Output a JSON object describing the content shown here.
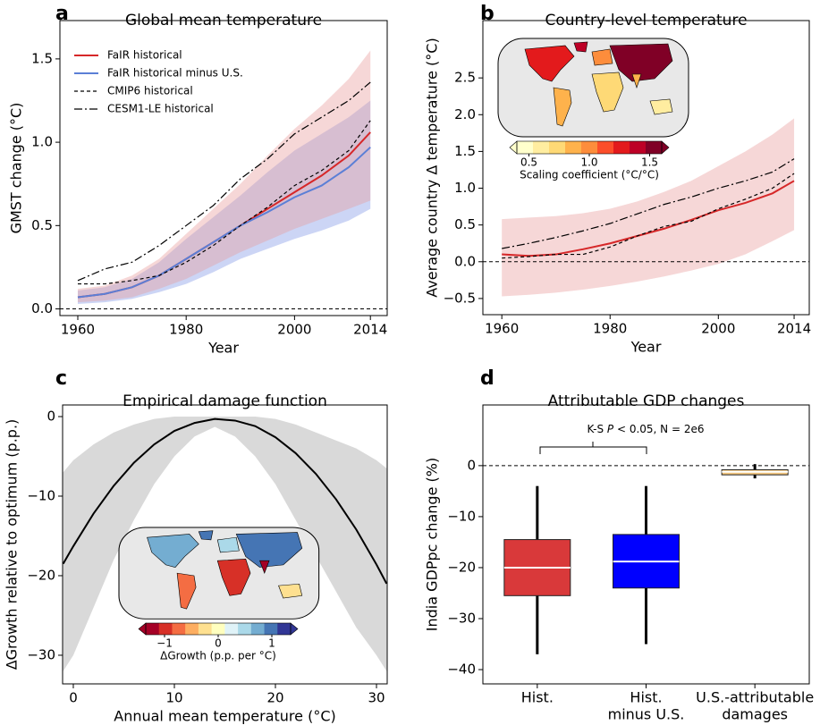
{
  "chart_data": [
    {
      "type": "line",
      "letter": "a",
      "title": "Global mean temperature",
      "xlabel": "Year",
      "ylabel": "GMST change (°C)",
      "x": [
        1960,
        1965,
        1970,
        1975,
        1980,
        1985,
        1990,
        1995,
        2000,
        2005,
        2010,
        2014
      ],
      "xlim": [
        1956.7,
        2017.1
      ],
      "xticks": [
        1960,
        1980,
        2000,
        2014
      ],
      "ylim": [
        -0.04,
        1.73
      ],
      "yticks": [
        {
          "value": 0,
          "label": "0.0"
        },
        0.5,
        {
          "value": 1,
          "label": "1.0"
        },
        1.5
      ],
      "hline": 0,
      "bands": [
        {
          "color": "#7f96e6",
          "lower": [
            0.03,
            0.04,
            0.06,
            0.1,
            0.15,
            0.22,
            0.3,
            0.36,
            0.42,
            0.47,
            0.53,
            0.6
          ],
          "upper": [
            0.11,
            0.13,
            0.18,
            0.28,
            0.42,
            0.55,
            0.68,
            0.82,
            0.95,
            1.05,
            1.15,
            1.25
          ]
        },
        {
          "color": "#e89a9a",
          "lower": [
            0.04,
            0.05,
            0.07,
            0.12,
            0.18,
            0.26,
            0.34,
            0.41,
            0.48,
            0.54,
            0.6,
            0.65
          ],
          "upper": [
            0.12,
            0.14,
            0.2,
            0.3,
            0.45,
            0.6,
            0.75,
            0.92,
            1.08,
            1.22,
            1.38,
            1.55
          ]
        }
      ],
      "series": [
        {
          "name": "FaIR historical",
          "color": "#d62728",
          "dash": "solid",
          "values": [
            0.07,
            0.09,
            0.13,
            0.2,
            0.3,
            0.4,
            0.5,
            0.6,
            0.7,
            0.8,
            0.92,
            1.06
          ]
        },
        {
          "name": "FaIR historical minus U.S.",
          "color": "#5b7fd6",
          "dash": "solid",
          "values": [
            0.07,
            0.09,
            0.13,
            0.2,
            0.3,
            0.4,
            0.5,
            0.58,
            0.67,
            0.74,
            0.85,
            0.97
          ]
        },
        {
          "name": "CMIP6 historical",
          "color": "#000000",
          "dash": "dashed",
          "values": [
            0.15,
            0.15,
            0.17,
            0.2,
            0.28,
            0.38,
            0.5,
            0.61,
            0.74,
            0.83,
            0.95,
            1.13
          ]
        },
        {
          "name": "CESM1-LE historical",
          "color": "#000000",
          "dash": "dashdot",
          "values": [
            0.17,
            0.24,
            0.28,
            0.38,
            0.5,
            0.62,
            0.78,
            0.9,
            1.05,
            1.15,
            1.25,
            1.36
          ]
        }
      ],
      "legend": "upper left"
    },
    {
      "type": "line",
      "letter": "b",
      "title": "Country-level temperature",
      "xlabel": "Year",
      "ylabel": "Average country Δ temperature (°C)",
      "x": [
        1960,
        1965,
        1970,
        1975,
        1980,
        1985,
        1990,
        1995,
        2000,
        2005,
        2010,
        2014
      ],
      "xlim": [
        1956.5,
        2016.8
      ],
      "xticks": [
        1960,
        1980,
        2000,
        2014
      ],
      "ylim": [
        -0.72,
        3.28
      ],
      "yticks": [
        {
          "value": -0.5,
          "label": "−0.5"
        },
        {
          "value": 0,
          "label": "0.0"
        },
        0.5,
        {
          "value": 1,
          "label": "1.0"
        },
        1.5,
        {
          "value": 2,
          "label": "2.0"
        },
        2.5
      ],
      "hline": 0,
      "bands": [
        {
          "color": "#e89a9a",
          "lower": [
            -0.47,
            -0.45,
            -0.42,
            -0.38,
            -0.33,
            -0.27,
            -0.2,
            -0.12,
            -0.03,
            0.1,
            0.28,
            0.43
          ],
          "upper": [
            0.58,
            0.6,
            0.62,
            0.66,
            0.72,
            0.82,
            0.95,
            1.1,
            1.3,
            1.5,
            1.73,
            1.95
          ]
        }
      ],
      "series": [
        {
          "color": "#d62728",
          "dash": "solid",
          "values": [
            0.1,
            0.08,
            0.1,
            0.17,
            0.25,
            0.35,
            0.45,
            0.57,
            0.7,
            0.8,
            0.93,
            1.1
          ]
        },
        {
          "color": "#000000",
          "dash": "dashed",
          "values": [
            0.05,
            0.07,
            0.1,
            0.1,
            0.2,
            0.35,
            0.48,
            0.55,
            0.72,
            0.85,
            1.0,
            1.2
          ]
        },
        {
          "color": "#000000",
          "dash": "dashdot",
          "values": [
            0.18,
            0.25,
            0.33,
            0.42,
            0.52,
            0.65,
            0.78,
            0.88,
            1.0,
            1.1,
            1.22,
            1.4
          ]
        }
      ],
      "colorbar": {
        "colors": [
          "#ffffcc",
          "#ffeda0",
          "#fed976",
          "#feb24c",
          "#fd8d3c",
          "#fc4e2a",
          "#e31a1c",
          "#bd0026",
          "#800026"
        ],
        "lim": [
          0.4,
          1.6
        ],
        "ticks": [
          0.5,
          {
            "value": 1,
            "label": "1.0"
          },
          1.5
        ],
        "label": "Scaling coefficient (°C/°C)"
      }
    },
    {
      "type": "line",
      "letter": "c",
      "title": "Empirical damage function",
      "xlabel": "Annual mean temperature (°C)",
      "ylabel": "ΔGrowth relative to optimum (p.p.)",
      "x": [
        -1,
        0,
        2,
        4,
        6,
        8,
        10,
        12,
        14,
        16,
        18,
        20,
        22,
        24,
        26,
        28,
        30,
        31
      ],
      "xlim": [
        -1.06,
        31.06
      ],
      "xticks": [
        0,
        10,
        20,
        30
      ],
      "ylim": [
        -33.6,
        1.46
      ],
      "yticks": [
        {
          "value": -30,
          "label": "−30"
        },
        {
          "value": -20,
          "label": "−20"
        },
        {
          "value": -10,
          "label": "−10"
        },
        0
      ],
      "bands": [
        {
          "color": "#cfcfcf",
          "lower": [
            -32,
            -30,
            -24,
            -18,
            -13,
            -8.5,
            -5,
            -2.5,
            -1.3,
            -2.5,
            -5,
            -8.5,
            -13,
            -17.5,
            -22,
            -26.5,
            -30,
            -32
          ],
          "upper": [
            -7,
            -5.5,
            -3.5,
            -2,
            -1,
            -0.3,
            0,
            0,
            0,
            0,
            0,
            -0.3,
            -1,
            -2,
            -3,
            -4,
            -5.5,
            -6.5
          ]
        }
      ],
      "series": [
        {
          "color": "#000000",
          "dash": "solid",
          "values": [
            -18.5,
            -16.3,
            -12.2,
            -8.7,
            -5.8,
            -3.5,
            -1.8,
            -0.8,
            -0.3,
            -0.5,
            -1.2,
            -2.6,
            -4.6,
            -7.2,
            -10.4,
            -14.2,
            -18.6,
            -21
          ]
        }
      ],
      "colorbar": {
        "colors": [
          "#a50026",
          "#d73027",
          "#f46d43",
          "#fdae61",
          "#fee090",
          "#ffffbf",
          "#e0f3f8",
          "#abd9e9",
          "#74add1",
          "#4575b4",
          "#313695"
        ],
        "lim": [
          -1.35,
          1.35
        ],
        "ticks": [
          {
            "value": -1,
            "label": "−1"
          },
          0,
          1
        ],
        "label": "ΔGrowth (p.p. per °C)"
      }
    },
    {
      "type": "box",
      "letter": "d",
      "title": "Attributable GDP changes",
      "ylabel": "India GDPpc change (%)",
      "categories": [
        [
          "Hist."
        ],
        [
          "Hist.",
          "minus U.S."
        ],
        [
          "U.S.-attributable",
          "damages"
        ]
      ],
      "ylim": [
        -42.8,
        11.9
      ],
      "yticks": [
        {
          "value": -40,
          "label": "−40"
        },
        {
          "value": -30,
          "label": "−30"
        },
        {
          "value": -20,
          "label": "−20"
        },
        {
          "value": -10,
          "label": "−10"
        },
        0
      ],
      "hline": 0,
      "boxes": [
        {
          "color": "#d9393a",
          "whislo": -37,
          "q1": -25.5,
          "med": -20,
          "q3": -14.5,
          "whishi": -4
        },
        {
          "color": "#0000ff",
          "whislo": -35,
          "q1": -24,
          "med": -18.8,
          "q3": -13.5,
          "whishi": -4
        },
        {
          "color": "#f5c77e",
          "whislo": -2.5,
          "q1": -1.8,
          "med": -1.2,
          "q3": -0.8,
          "whishi": 0.3
        }
      ],
      "annotation": [
        "K-S ",
        "P",
        " < 0.05, N = 2e6"
      ]
    }
  ]
}
